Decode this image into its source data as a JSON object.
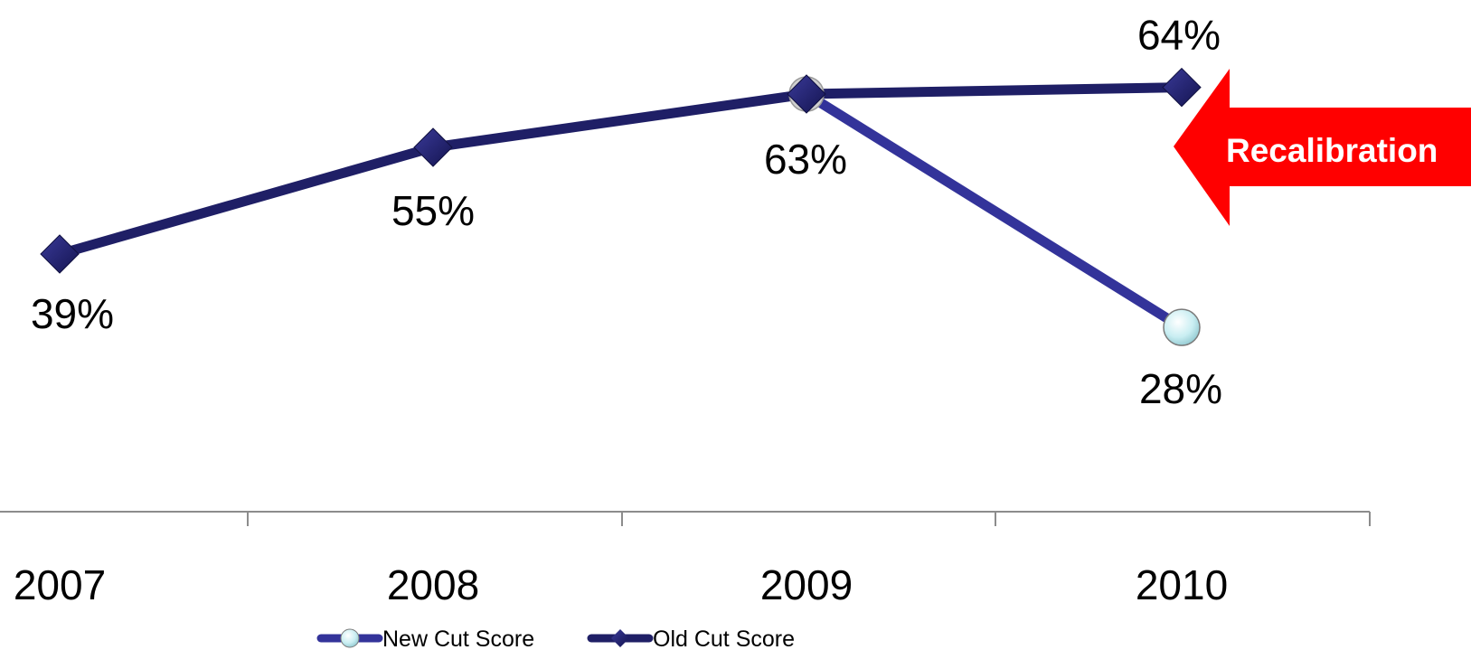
{
  "chart_data": {
    "type": "line",
    "categories": [
      "2007",
      "2008",
      "2009",
      "2010"
    ],
    "series": [
      {
        "name": "New Cut Score",
        "values": [
          null,
          null,
          63,
          28
        ],
        "labels": [
          null,
          null,
          null,
          "28%"
        ],
        "color": "#33339a",
        "marker": "circle"
      },
      {
        "name": "Old Cut Score",
        "values": [
          39,
          55,
          63,
          64
        ],
        "labels": [
          "39%",
          "55%",
          "63%",
          "64%"
        ],
        "color": "#1f1f66",
        "marker": "diamond"
      }
    ],
    "ylim": [
      0,
      100
    ],
    "yaxis_visible": false,
    "grid": false,
    "legend": "bottom",
    "annotation": {
      "text": "Recalibration",
      "shape": "left-arrow",
      "color": "#ff0000",
      "points_to": "2010"
    }
  }
}
